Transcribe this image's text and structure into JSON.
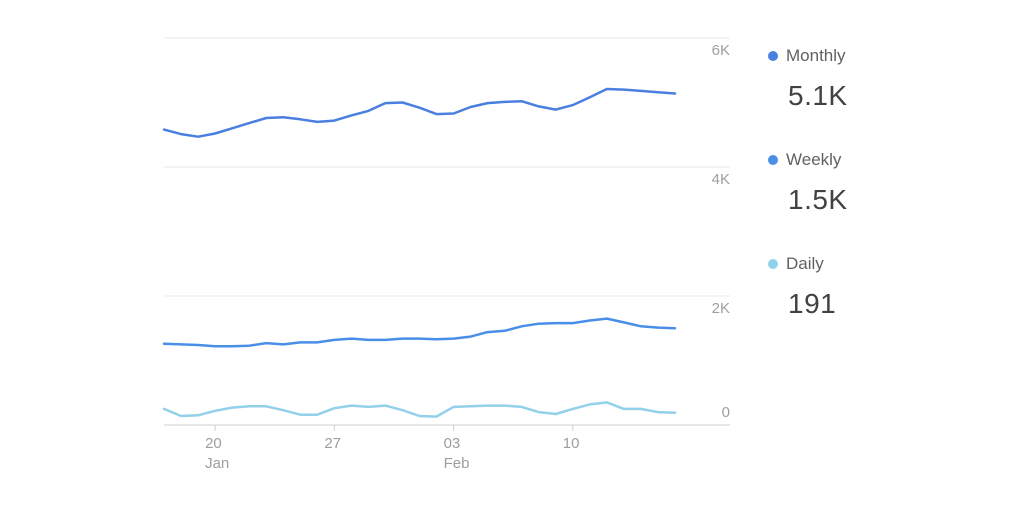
{
  "chart_data": {
    "type": "line",
    "x": [
      "Jan 17",
      "Jan 18",
      "Jan 19",
      "Jan 20",
      "Jan 21",
      "Jan 22",
      "Jan 23",
      "Jan 24",
      "Jan 25",
      "Jan 26",
      "Jan 27",
      "Jan 28",
      "Jan 29",
      "Jan 30",
      "Jan 31",
      "Feb 01",
      "Feb 02",
      "Feb 03",
      "Feb 04",
      "Feb 05",
      "Feb 06",
      "Feb 07",
      "Feb 08",
      "Feb 09",
      "Feb 10",
      "Feb 11",
      "Feb 12",
      "Feb 13",
      "Feb 14",
      "Feb 15",
      "Feb 16"
    ],
    "x_ticks": [
      {
        "x": "Jan 20",
        "day": "20",
        "month": "Jan"
      },
      {
        "x": "Jan 27",
        "day": "27",
        "month": ""
      },
      {
        "x": "Feb 03",
        "day": "03",
        "month": "Feb"
      },
      {
        "x": "Feb 10",
        "day": "10",
        "month": ""
      }
    ],
    "y_ticks": [
      {
        "value": 0,
        "label": "0"
      },
      {
        "value": 2000,
        "label": "2K"
      },
      {
        "value": 4000,
        "label": "4K"
      },
      {
        "value": 6000,
        "label": "6K"
      }
    ],
    "ylim": [
      0,
      6000
    ],
    "grid": true,
    "legend_position": "right",
    "series": [
      {
        "name": "Monthly",
        "display_value": "5.1K",
        "color": "#4a7fe0",
        "values": [
          4580,
          4510,
          4470,
          4520,
          4600,
          4680,
          4760,
          4770,
          4740,
          4700,
          4720,
          4800,
          4870,
          4990,
          5000,
          4920,
          4820,
          4830,
          4930,
          4990,
          5010,
          5020,
          4940,
          4890,
          4960,
          5080,
          5210,
          5200,
          5180,
          5160,
          5140
        ]
      },
      {
        "name": "Weekly",
        "display_value": "1.5K",
        "color": "#4a8fe7",
        "values": [
          1260,
          1250,
          1240,
          1220,
          1220,
          1230,
          1270,
          1250,
          1280,
          1280,
          1320,
          1340,
          1320,
          1320,
          1340,
          1340,
          1330,
          1340,
          1370,
          1440,
          1460,
          1530,
          1570,
          1580,
          1580,
          1620,
          1650,
          1590,
          1530,
          1510,
          1500
        ]
      },
      {
        "name": "Daily",
        "display_value": "191",
        "color": "#93d0ea",
        "values": [
          250,
          140,
          150,
          220,
          270,
          290,
          290,
          230,
          160,
          160,
          260,
          300,
          280,
          300,
          230,
          140,
          130,
          280,
          290,
          300,
          300,
          280,
          200,
          170,
          250,
          320,
          350,
          250,
          250,
          200,
          191
        ]
      }
    ]
  }
}
